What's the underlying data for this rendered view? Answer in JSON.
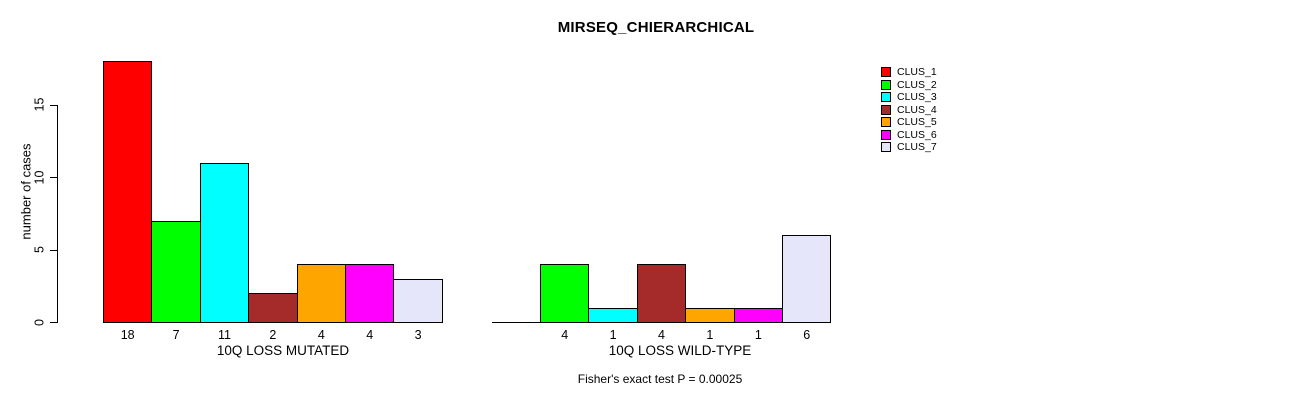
{
  "chart_data": {
    "type": "bar",
    "title": "MIRSEQ_CHIERARCHICAL",
    "ylabel": "number of cases",
    "xlabel": "",
    "ylim": [
      0,
      15
    ],
    "yticks": [
      0,
      5,
      10,
      15
    ],
    "grid": false,
    "legend_position": "right",
    "annotation": "Fisher's exact test P = 0.00025",
    "categories": [
      "CLUS_1",
      "CLUS_2",
      "CLUS_3",
      "CLUS_4",
      "CLUS_5",
      "CLUS_6",
      "CLUS_7"
    ],
    "colors": [
      "#FF0000",
      "#00FF00",
      "#00FFFF",
      "#A52A2A",
      "#FFA500",
      "#FF00FF",
      "#E6E6FA"
    ],
    "bar_border_color": "#000000",
    "groups": [
      {
        "label": "10Q LOSS MUTATED",
        "values": [
          18,
          7,
          11,
          2,
          4,
          4,
          3
        ],
        "bar_labels": [
          "18",
          "7",
          "11",
          "2",
          "4",
          "4",
          "3"
        ]
      },
      {
        "label": "10Q LOSS WILD-TYPE",
        "values": [
          0,
          4,
          1,
          4,
          1,
          1,
          6
        ],
        "bar_labels": [
          "",
          "4",
          "1",
          "4",
          "1",
          "1",
          "6"
        ]
      }
    ]
  }
}
